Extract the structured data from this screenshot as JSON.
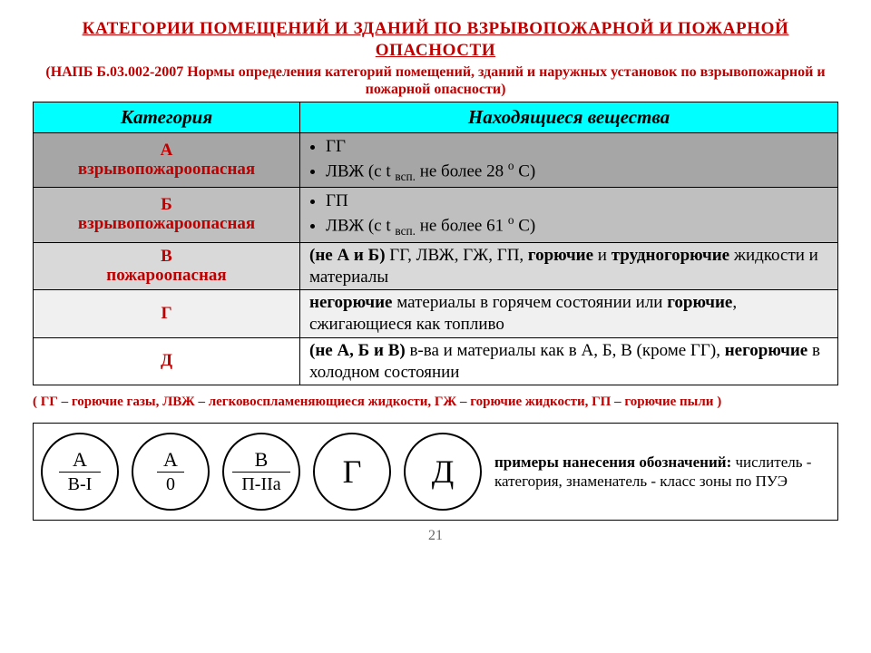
{
  "title": "КАТЕГОРИИ  ПОМЕЩЕНИЙ  И  ЗДАНИЙ  ПО  ВЗРЫВОПОЖАРНОЙ  И  ПОЖАРНОЙ  ОПАСНОСТИ",
  "subtitle": "(НАПБ Б.03.002-2007 Нормы определения категорий помещений, зданий и наружных установок по взрывопожарной и пожарной опасности)",
  "columns": {
    "c1": "Категория",
    "c2": "Находящиеся вещества"
  },
  "rows": {
    "a": {
      "cat_letter": "А",
      "cat_word": "взрывопожароопасная",
      "b1": "ГГ",
      "b2_pre": "ЛВЖ (с t ",
      "b2_sub": "всп.",
      "b2_mid": " не более 28 ",
      "b2_sup": "о",
      "b2_post": " С)"
    },
    "b": {
      "cat_letter": "Б",
      "cat_word": "взрывопожароопасная",
      "b1": "ГП",
      "b2_pre": "ЛВЖ (с t ",
      "b2_sub": "всп.",
      "b2_mid": " не более 61 ",
      "b2_sup": "о",
      "b2_post": " С)"
    },
    "v": {
      "cat_letter": "В",
      "cat_word": "пожароопасная",
      "d_bold1": "(не А и Б)",
      "d_mid": " ГГ, ЛВЖ, ГЖ, ГП, ",
      "d_bold2": "горючие",
      "d_mid2": " и ",
      "d_bold3": "трудногорючие",
      "d_tail": " жидкости и материалы"
    },
    "g": {
      "cat_letter": "Г",
      "d_bold1": "негорючие",
      "d_mid": " материалы в горячем состоянии или ",
      "d_bold2": "горючие",
      "d_tail": ", сжигающиеся как топливо"
    },
    "d": {
      "cat_letter": "Д",
      "d_bold1": "(не А, Б и В)",
      "d_mid": " в-ва и материалы как в А, Б, В (кроме ГГ), ",
      "d_bold2": "негорючие",
      "d_tail": " в холодном состоянии"
    }
  },
  "legend": "( ГГ – горючие газы, ЛВЖ – легковоспламеняющиеся жидкости, ГЖ – горючие жидкости, ГП – горючие пыли )",
  "examples": {
    "c1": {
      "num": "А",
      "den": "В-I"
    },
    "c2": {
      "num": "А",
      "den": "0"
    },
    "c3": {
      "num": "В",
      "den": "П-IIа"
    },
    "c4": "Г",
    "c5": "Д",
    "text_bold": "примеры нанесения обозначений:",
    "text_tail": " числитель - категория, знаменатель - класс зоны по ПУЭ"
  },
  "page": "21"
}
